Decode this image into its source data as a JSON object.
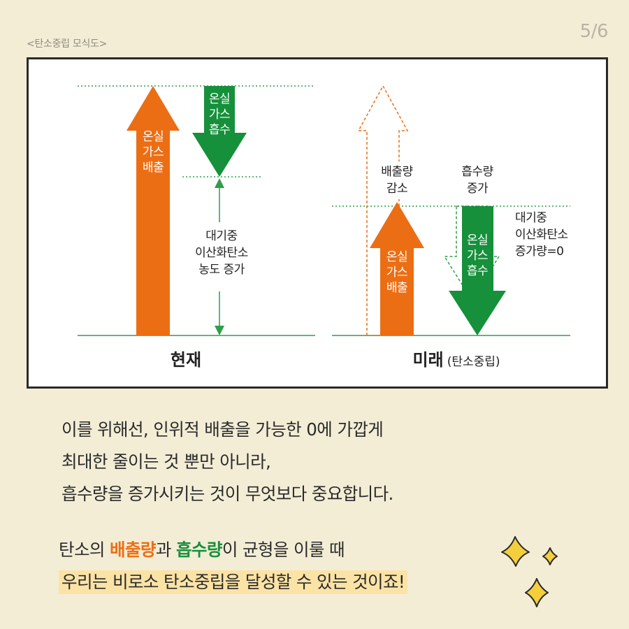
{
  "header": {
    "caption": "<탄소중립 모식도>",
    "page": "5/6"
  },
  "diagram": {
    "present": {
      "title": "현재",
      "emission_label": [
        "온실",
        "가스",
        "배출"
      ],
      "absorption_label": [
        "온실",
        "가스",
        "흡수"
      ],
      "concentration_note": [
        "대기중",
        "이산화탄소",
        "농도 증가"
      ]
    },
    "future": {
      "title": "미래",
      "subtitle": "(탄소중립)",
      "emission_label": [
        "온실",
        "가스",
        "배출"
      ],
      "absorption_label": [
        "온실",
        "가스",
        "흡수"
      ],
      "emission_change": [
        "배출량",
        "감소"
      ],
      "absorption_change": [
        "흡수량",
        "증가"
      ],
      "balance_note": [
        "대기중",
        "이산화탄소",
        "증가량=0"
      ]
    },
    "colors": {
      "emission": "#ec6e14",
      "absorption": "#16903b",
      "guide_line": "#2e9e4a"
    }
  },
  "body": {
    "lines": [
      "이를 위해선, 인위적 배출을 가능한 0에 가깝게",
      "최대한 줄이는 것 뿐만 아니라,",
      "흡수량을 증가시키는 것이 무엇보다 중요합니다."
    ]
  },
  "conclusion": {
    "part1": "탄소의 ",
    "emission_word": "배출량",
    "part2": "과 ",
    "absorption_word": "흡수량",
    "part3": "이 균형을 이룰 때",
    "line2": "우리는 비로소 탄소중립을 달성할 수 있는 것이죠!"
  }
}
